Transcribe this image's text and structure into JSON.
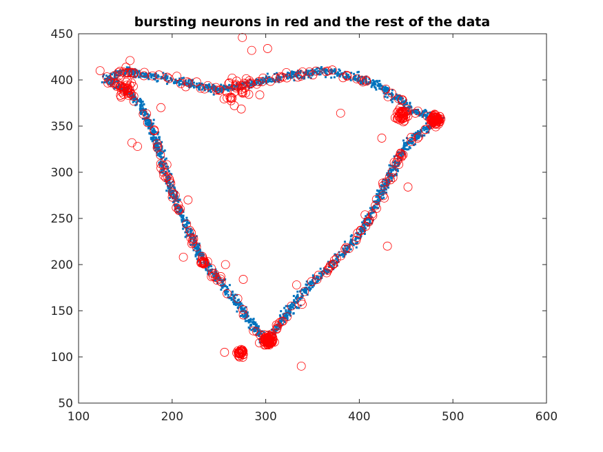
{
  "chart_data": {
    "type": "scatter",
    "title": "bursting neurons in red and the rest of the data",
    "xlabel": "",
    "ylabel": "",
    "xlim": [
      100,
      600
    ],
    "ylim": [
      50,
      450
    ],
    "xticks": [
      100,
      200,
      300,
      400,
      500,
      600
    ],
    "yticks": [
      50,
      100,
      150,
      200,
      250,
      300,
      350,
      400,
      450
    ],
    "grid": false,
    "legend": "none",
    "colors": {
      "data": "#0072BD",
      "bursting": "#FF0000",
      "axes": "#262626"
    },
    "series": [
      {
        "role": "data",
        "marker": "square-dot",
        "color": "#0072BD",
        "path_vertices": [
          [
            130,
            400
          ],
          [
            150,
            410
          ],
          [
            175,
            405
          ],
          [
            200,
            400
          ],
          [
            225,
            395
          ],
          [
            250,
            390
          ],
          [
            275,
            395
          ],
          [
            300,
            400
          ],
          [
            330,
            405
          ],
          [
            360,
            410
          ],
          [
            390,
            405
          ],
          [
            420,
            395
          ],
          [
            440,
            380
          ],
          [
            460,
            365
          ],
          [
            485,
            358
          ],
          [
            470,
            345
          ],
          [
            450,
            330
          ],
          [
            440,
            310
          ],
          [
            430,
            290
          ],
          [
            420,
            270
          ],
          [
            410,
            250
          ],
          [
            398,
            230
          ],
          [
            385,
            215
          ],
          [
            370,
            200
          ],
          [
            355,
            185
          ],
          [
            340,
            170
          ],
          [
            325,
            150
          ],
          [
            310,
            130
          ],
          [
            300,
            115
          ],
          [
            290,
            130
          ],
          [
            275,
            150
          ],
          [
            260,
            170
          ],
          [
            245,
            190
          ],
          [
            230,
            210
          ],
          [
            218,
            235
          ],
          [
            208,
            260
          ],
          [
            198,
            285
          ],
          [
            190,
            310
          ],
          [
            183,
            335
          ],
          [
            175,
            355
          ],
          [
            165,
            375
          ],
          [
            150,
            390
          ],
          [
            130,
            400
          ]
        ],
        "spread": 7,
        "point_count": 2600
      },
      {
        "role": "bursting",
        "marker": "open-circle",
        "color": "#FF0000",
        "clusters": [
          {
            "center": [
              303,
              118
            ],
            "radius": 8,
            "count": 60
          },
          {
            "center": [
              273,
              104
            ],
            "radius": 7,
            "count": 30
          },
          {
            "center": [
              482,
              357
            ],
            "radius": 8,
            "count": 55
          },
          {
            "center": [
              445,
              362
            ],
            "radius": 9,
            "count": 40
          },
          {
            "center": [
              233,
              204
            ],
            "radius": 6,
            "count": 14
          },
          {
            "center": [
              150,
              390
            ],
            "radius": 12,
            "count": 30
          },
          {
            "center": [
              270,
              390
            ],
            "radius": 30,
            "count": 30
          }
        ],
        "along_path_count": 220,
        "outliers": [
          [
            123,
            410
          ],
          [
            155,
            421
          ],
          [
            157,
            332
          ],
          [
            163,
            328
          ],
          [
            205,
            404
          ],
          [
            275,
            446
          ],
          [
            302,
            434
          ],
          [
            285,
            432
          ],
          [
            212,
            208
          ],
          [
            257,
            200
          ],
          [
            248,
            183
          ],
          [
            276,
            184
          ],
          [
            380,
            364
          ],
          [
            430,
            220
          ],
          [
            452,
            284
          ],
          [
            424,
            337
          ],
          [
            333,
            178
          ],
          [
            339,
            157
          ],
          [
            312,
            131
          ],
          [
            256,
            105
          ],
          [
            338,
            90
          ],
          [
            252,
            187
          ],
          [
            188,
            370
          ],
          [
            217,
            270
          ]
        ]
      }
    ]
  }
}
